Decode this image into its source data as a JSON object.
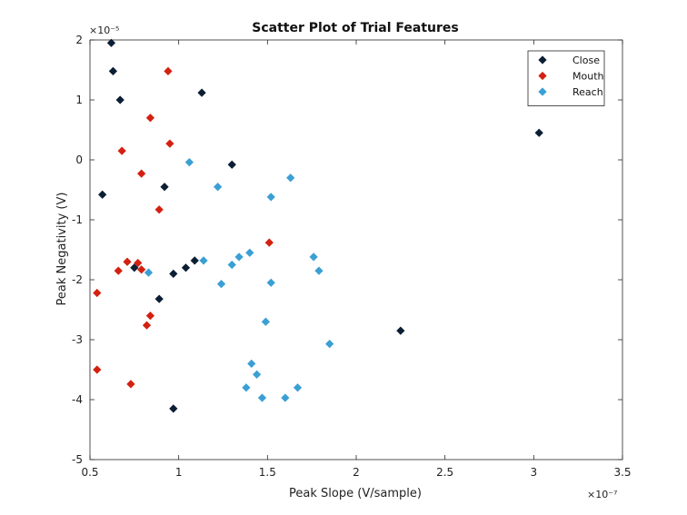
{
  "chart_data": {
    "type": "scatter",
    "title": "Scatter Plot of Trial Features",
    "xlabel": "Peak Slope (V/sample)",
    "ylabel": "Peak Negativity (V)",
    "x_exponent_label": "×10⁻⁷",
    "y_exponent_label": "×10⁻⁵",
    "xlim": [
      0.5,
      3.5
    ],
    "ylim": [
      -5,
      2
    ],
    "x_ticks": [
      0.5,
      1,
      1.5,
      2,
      2.5,
      3,
      3.5
    ],
    "x_tick_labels": [
      "0.5",
      "1",
      "1.5",
      "2",
      "2.5",
      "3",
      "3.5"
    ],
    "y_ticks": [
      -5,
      -4,
      -3,
      -2,
      -1,
      0,
      1,
      2
    ],
    "y_tick_labels": [
      "-5",
      "-4",
      "-3",
      "-2",
      "-1",
      "0",
      "1",
      "2"
    ],
    "legend_position": "top-right",
    "grid": false,
    "series": [
      {
        "name": "Close",
        "color": "#0b1e33",
        "points": [
          [
            0.62,
            1.95
          ],
          [
            0.63,
            1.48
          ],
          [
            0.67,
            1.0
          ],
          [
            1.13,
            1.12
          ],
          [
            0.57,
            -0.58
          ],
          [
            0.92,
            -0.45
          ],
          [
            1.3,
            -0.08
          ],
          [
            3.03,
            0.45
          ],
          [
            0.75,
            -1.8
          ],
          [
            1.09,
            -1.68
          ],
          [
            1.04,
            -1.8
          ],
          [
            0.97,
            -1.9
          ],
          [
            0.89,
            -2.32
          ],
          [
            2.25,
            -2.85
          ],
          [
            0.97,
            -4.15
          ]
        ]
      },
      {
        "name": "Mouth",
        "color": "#d42010",
        "points": [
          [
            0.94,
            1.48
          ],
          [
            0.84,
            0.7
          ],
          [
            0.95,
            0.27
          ],
          [
            0.68,
            0.15
          ],
          [
            0.79,
            -0.23
          ],
          [
            0.89,
            -0.83
          ],
          [
            1.51,
            -1.38
          ],
          [
            0.71,
            -1.7
          ],
          [
            0.77,
            -1.72
          ],
          [
            0.66,
            -1.85
          ],
          [
            0.79,
            -1.83
          ],
          [
            0.54,
            -2.22
          ],
          [
            0.84,
            -2.6
          ],
          [
            0.82,
            -2.76
          ],
          [
            0.54,
            -3.5
          ],
          [
            0.73,
            -3.74
          ]
        ]
      },
      {
        "name": "Reach",
        "color": "#3a9fd4",
        "points": [
          [
            1.06,
            -0.04
          ],
          [
            1.22,
            -0.45
          ],
          [
            1.52,
            -0.62
          ],
          [
            1.63,
            -0.3
          ],
          [
            1.14,
            -1.68
          ],
          [
            1.34,
            -1.62
          ],
          [
            1.4,
            -1.55
          ],
          [
            1.3,
            -1.75
          ],
          [
            0.83,
            -1.88
          ],
          [
            1.76,
            -1.62
          ],
          [
            1.79,
            -1.85
          ],
          [
            1.24,
            -2.07
          ],
          [
            1.52,
            -2.05
          ],
          [
            1.49,
            -2.7
          ],
          [
            1.85,
            -3.07
          ],
          [
            1.41,
            -3.4
          ],
          [
            1.44,
            -3.58
          ],
          [
            1.38,
            -3.8
          ],
          [
            1.47,
            -3.97
          ],
          [
            1.6,
            -3.97
          ],
          [
            1.67,
            -3.8
          ]
        ]
      }
    ]
  }
}
